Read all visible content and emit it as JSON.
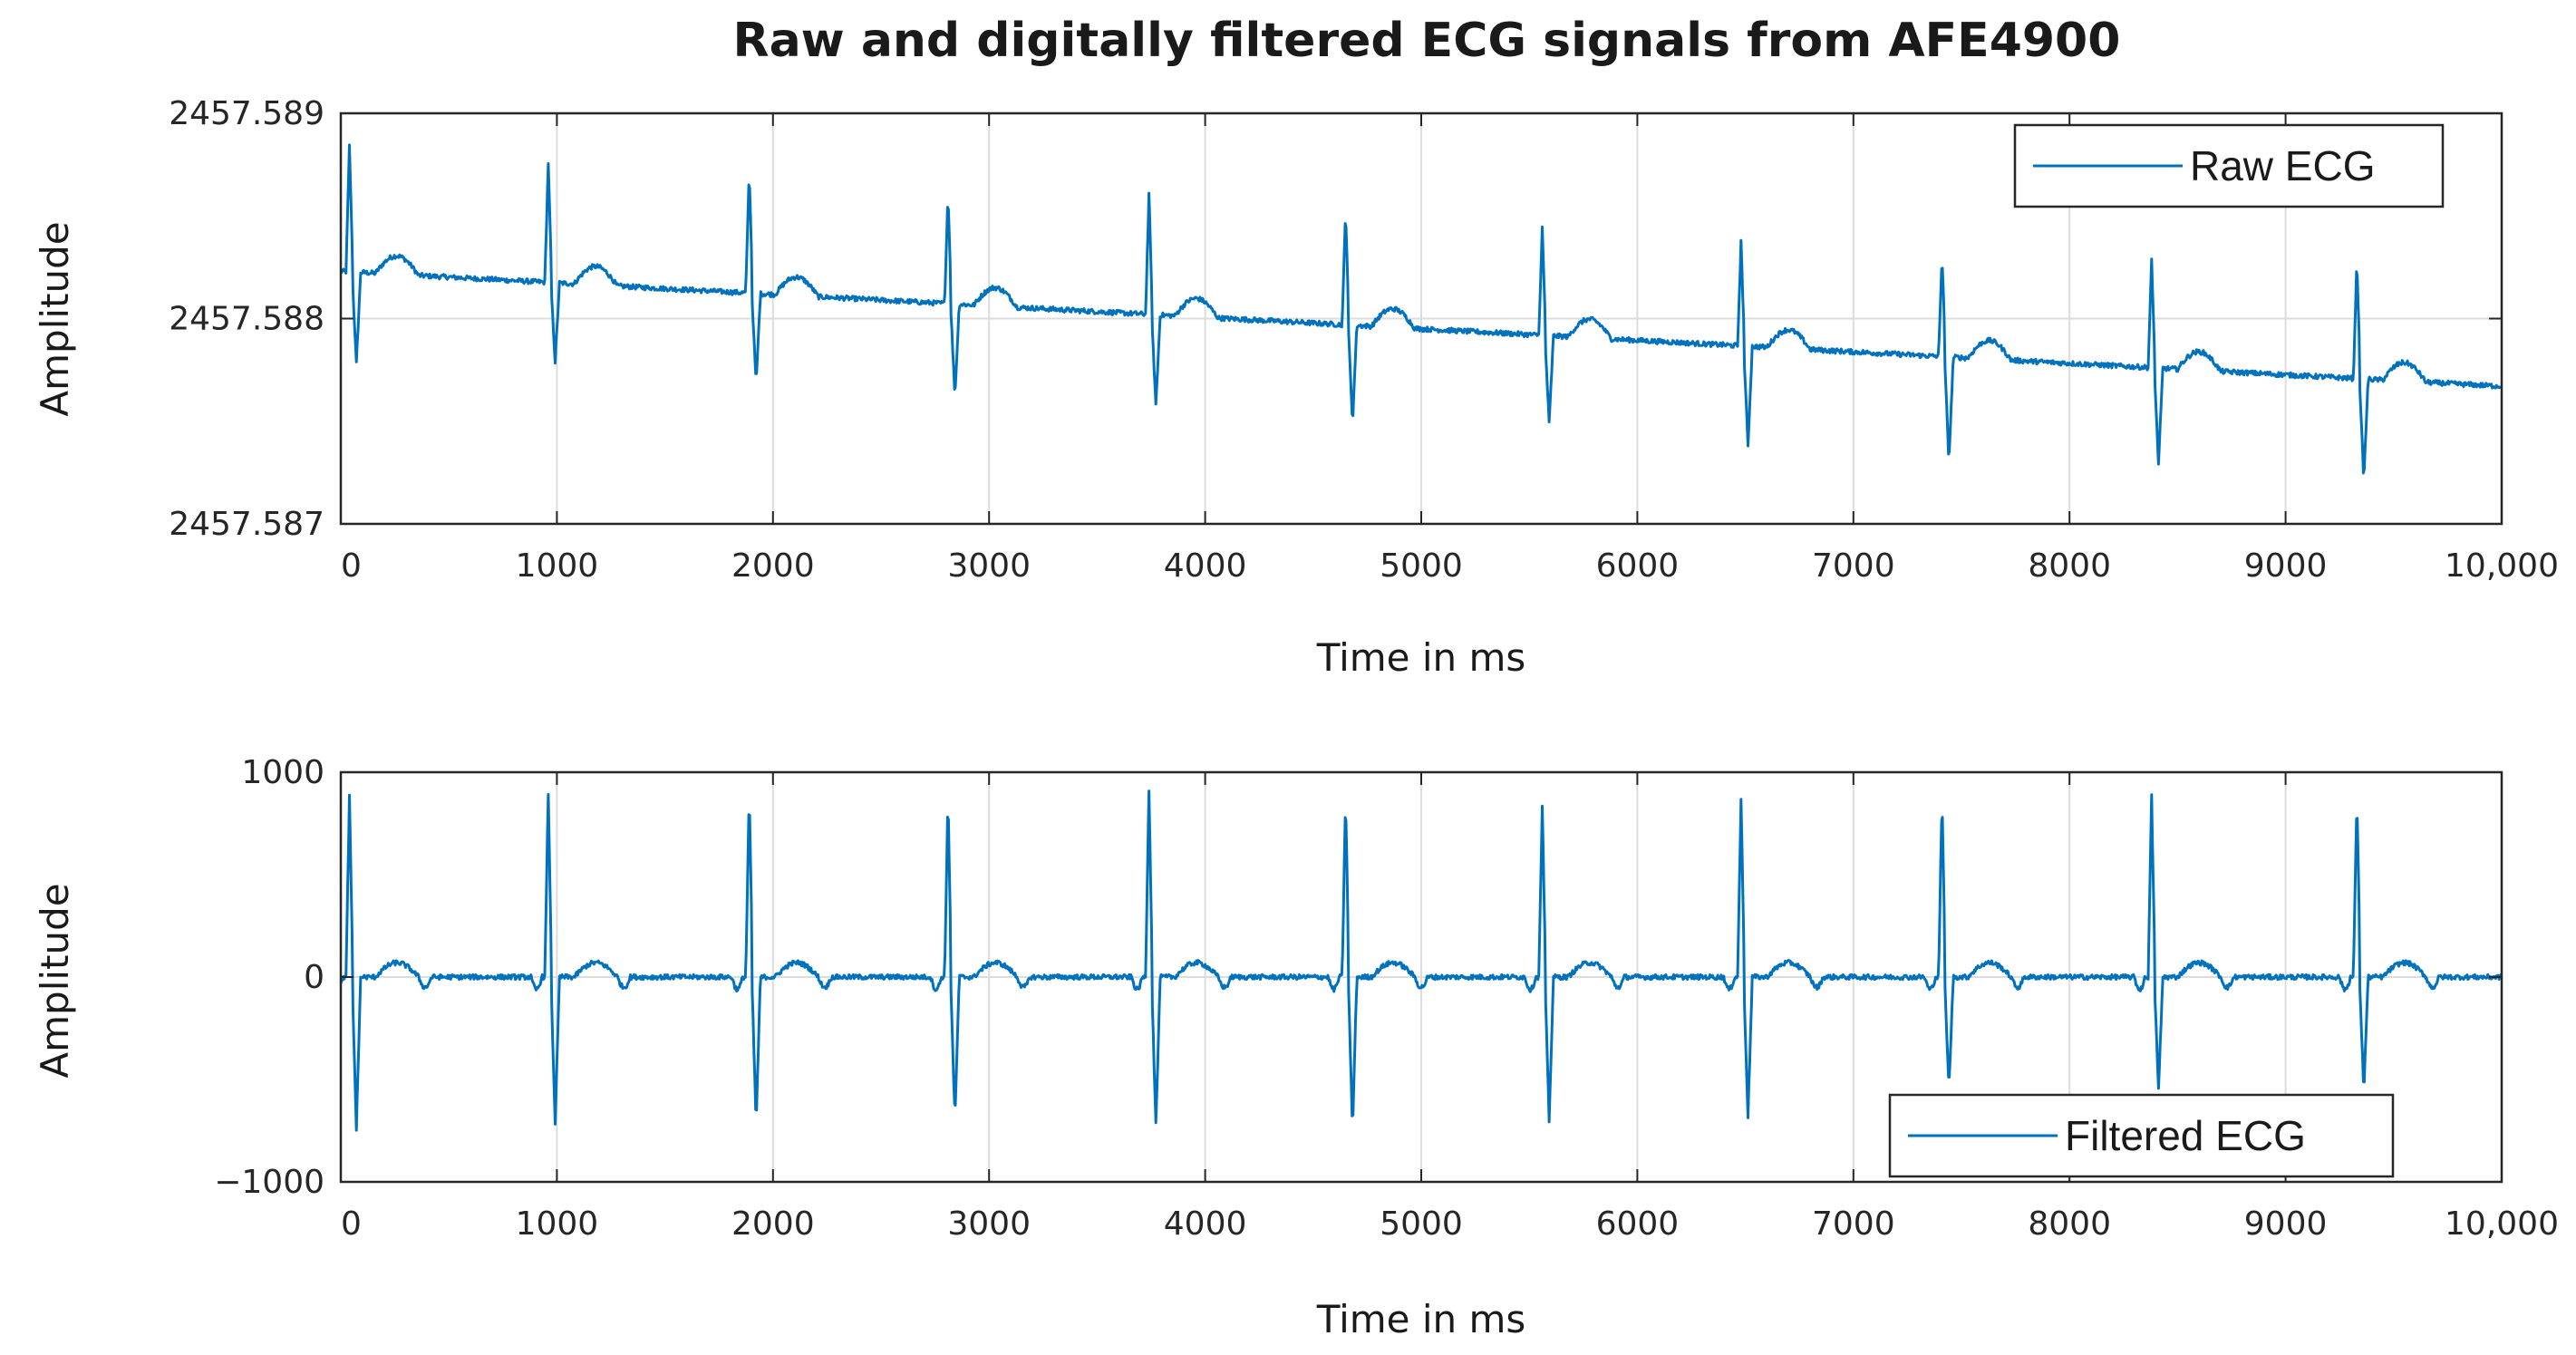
{
  "chart_data": [
    {
      "type": "line",
      "title": "Raw and digitally filtered ECG signals from AFE4900",
      "xlabel": "Time in ms",
      "ylabel": "Amplitude",
      "xlim": [
        0,
        10000
      ],
      "ylim": [
        2457.587,
        2457.589
      ],
      "xticks": [
        0,
        1000,
        2000,
        3000,
        4000,
        5000,
        6000,
        7000,
        8000,
        9000,
        10000
      ],
      "xtick_labels": [
        "0",
        "1000",
        "2000",
        "3000",
        "4000",
        "5000",
        "6000",
        "7000",
        "8000",
        "9000",
        "10,000"
      ],
      "yticks": [
        2457.587,
        2457.588,
        2457.589
      ],
      "ytick_labels": [
        "2457.587",
        "2457.588",
        "2457.589"
      ],
      "grid": true,
      "legend": "top-right",
      "series": [
        {
          "name": "Raw ECG",
          "color": "#0072BD",
          "baseline_start": 2457.58823,
          "baseline_end": 2457.58767,
          "r_peak_times": [
            40,
            960,
            1890,
            2810,
            3740,
            4650,
            5560,
            6480,
            7410,
            8380,
            9330
          ],
          "r_peak_values": [
            2457.58884,
            2457.58876,
            2457.58872,
            2457.58861,
            2457.5886,
            2457.58853,
            2457.58844,
            2457.58837,
            2457.58831,
            2457.58828,
            2457.58829
          ],
          "s_trough_values": [
            2457.58778,
            2457.58779,
            2457.58768,
            2457.58762,
            2457.58758,
            2457.58749,
            2457.58749,
            2457.58738,
            2457.5873,
            2457.58729,
            2457.58721
          ]
        }
      ]
    },
    {
      "type": "line",
      "xlabel": "Time in ms",
      "ylabel": "Amplitude",
      "xlim": [
        0,
        10000
      ],
      "ylim": [
        -1000,
        1000
      ],
      "xticks": [
        0,
        1000,
        2000,
        3000,
        4000,
        5000,
        6000,
        7000,
        8000,
        9000,
        10000
      ],
      "xtick_labels": [
        "0",
        "1000",
        "2000",
        "3000",
        "4000",
        "5000",
        "6000",
        "7000",
        "8000",
        "9000",
        "10,000"
      ],
      "yticks": [
        -1000,
        0,
        1000
      ],
      "ytick_labels": [
        "−1000",
        "0",
        "1000"
      ],
      "grid": true,
      "legend": "bottom-right",
      "series": [
        {
          "name": "Filtered ECG",
          "color": "#0072BD",
          "baseline": 0,
          "r_peak_times": [
            40,
            960,
            1890,
            2810,
            3740,
            4650,
            5560,
            6480,
            7410,
            8380,
            9330
          ],
          "r_peak_values": [
            880,
            900,
            900,
            880,
            920,
            880,
            830,
            870,
            880,
            880,
            890
          ],
          "s_trough_values": [
            -740,
            -710,
            -720,
            -700,
            -720,
            -750,
            -700,
            -680,
            -550,
            -550,
            -560
          ]
        }
      ]
    }
  ]
}
